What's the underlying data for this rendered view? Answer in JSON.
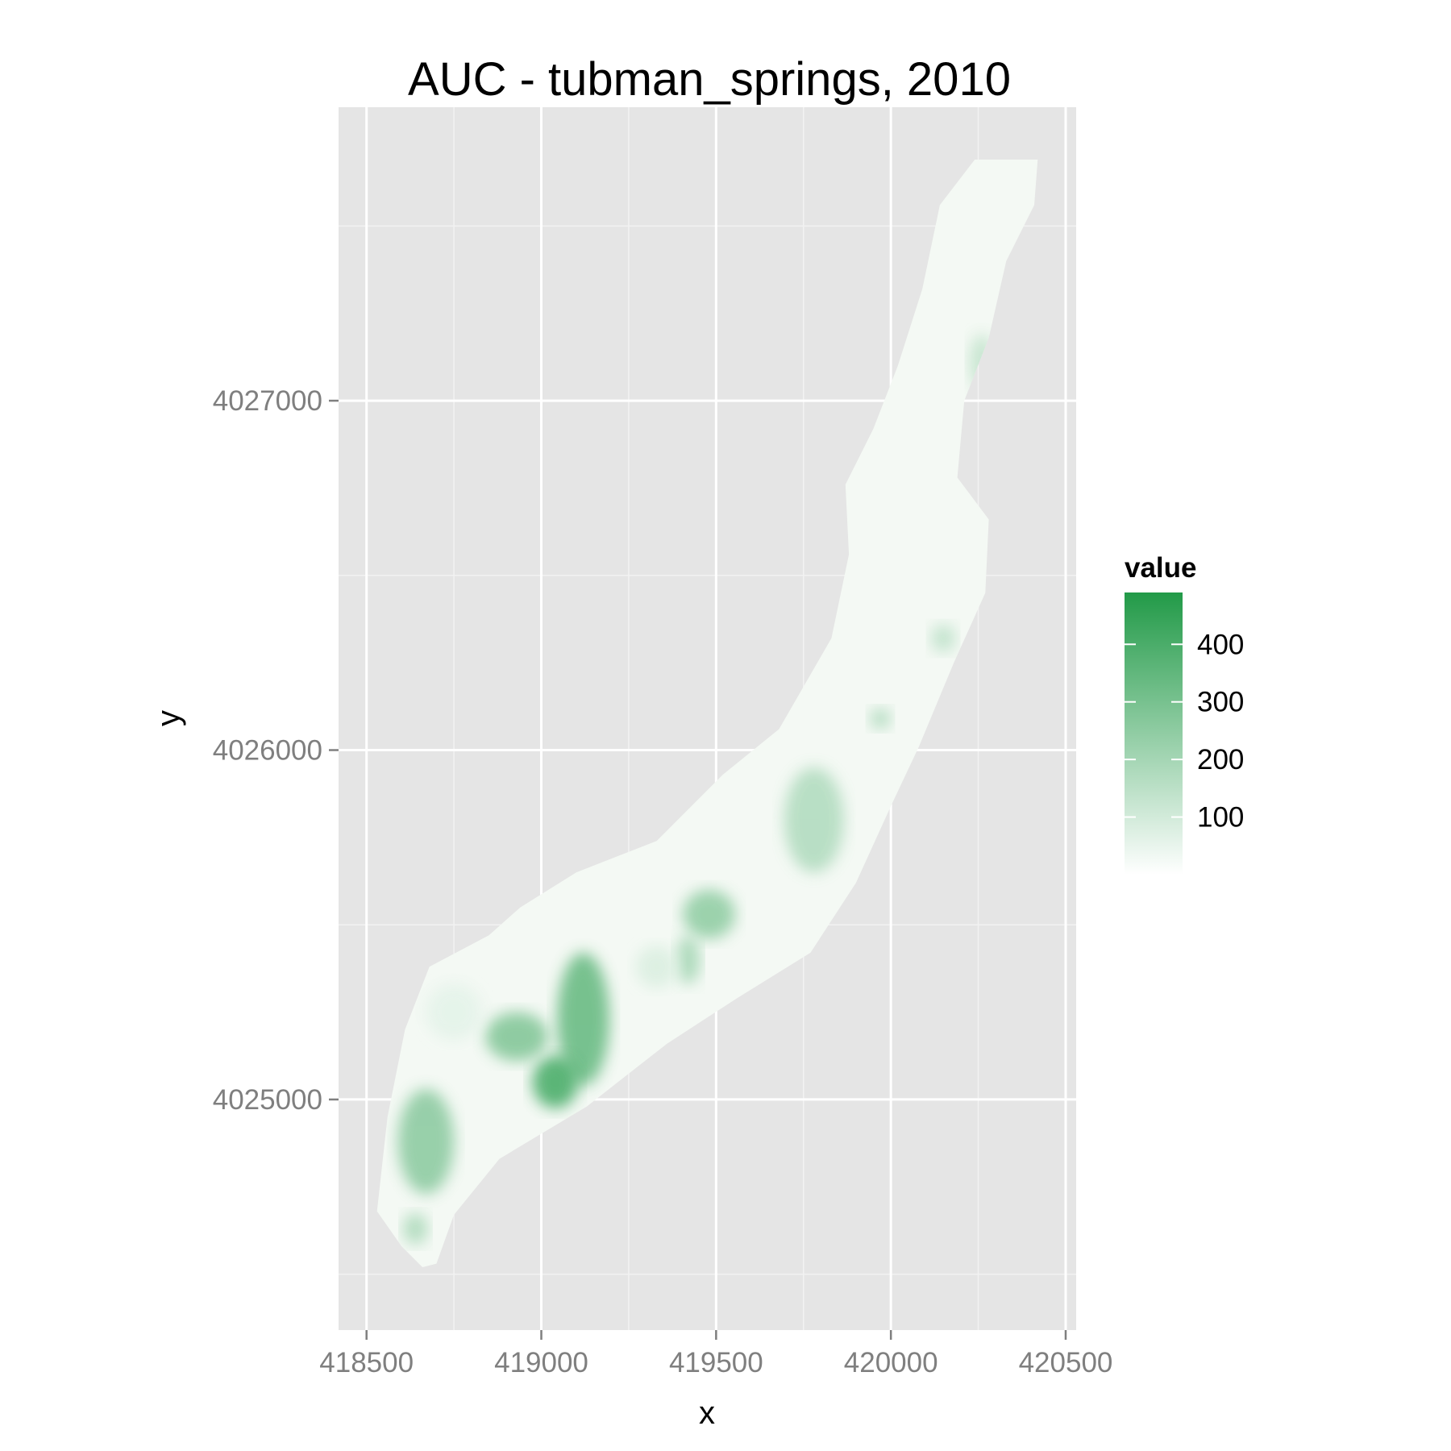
{
  "chart_data": {
    "type": "heatmap",
    "title": "AUC - tubman_springs, 2010",
    "xlabel": "x",
    "ylabel": "y",
    "xlim": [
      418420,
      420530
    ],
    "ylim": [
      4024340,
      4027840
    ],
    "x_ticks": [
      418500,
      419000,
      419500,
      420000,
      420500
    ],
    "x_tick_labels": [
      "418500",
      "419000",
      "419500",
      "420000",
      "420500"
    ],
    "y_ticks": [
      4025000,
      4026000,
      4027000
    ],
    "y_tick_labels": [
      "4025000",
      "4026000",
      "4027000"
    ],
    "grid": true,
    "panel_background": "#e5e5e5",
    "grid_color": "#ffffff",
    "legend": {
      "title": "value",
      "placement": "right",
      "range": [
        0,
        490
      ],
      "breaks": [
        100,
        200,
        300,
        400
      ],
      "break_labels": [
        "100",
        "200",
        "300",
        "400"
      ],
      "low_color": "#ffffff",
      "high_color": "#229a48"
    },
    "footprint": [
      [
        418530,
        4024680
      ],
      [
        418560,
        4024950
      ],
      [
        418610,
        4025200
      ],
      [
        418680,
        4025380
      ],
      [
        418850,
        4025470
      ],
      [
        418940,
        4025550
      ],
      [
        419100,
        4025650
      ],
      [
        419330,
        4025740
      ],
      [
        419520,
        4025930
      ],
      [
        419680,
        4026060
      ],
      [
        419830,
        4026320
      ],
      [
        419880,
        4026560
      ],
      [
        419870,
        4026760
      ],
      [
        419950,
        4026920
      ],
      [
        420020,
        4027100
      ],
      [
        420090,
        4027320
      ],
      [
        420140,
        4027560
      ],
      [
        420240,
        4027690
      ],
      [
        420420,
        4027690
      ],
      [
        420410,
        4027560
      ],
      [
        420330,
        4027400
      ],
      [
        420280,
        4027180
      ],
      [
        420210,
        4027000
      ],
      [
        420190,
        4026780
      ],
      [
        420280,
        4026660
      ],
      [
        420270,
        4026450
      ],
      [
        420180,
        4026250
      ],
      [
        420080,
        4026010
      ],
      [
        420000,
        4025840
      ],
      [
        419900,
        4025620
      ],
      [
        419770,
        4025420
      ],
      [
        419560,
        4025290
      ],
      [
        419360,
        4025160
      ],
      [
        419130,
        4024980
      ],
      [
        418880,
        4024830
      ],
      [
        418750,
        4024670
      ],
      [
        418700,
        4024530
      ],
      [
        418660,
        4024520
      ],
      [
        418600,
        4024580
      ]
    ],
    "hotspots": [
      {
        "x": 419120,
        "y": 4025230,
        "rx": 75,
        "ry": 190,
        "value": 330
      },
      {
        "x": 419040,
        "y": 4025050,
        "rx": 65,
        "ry": 75,
        "value": 400
      },
      {
        "x": 418930,
        "y": 4025180,
        "rx": 90,
        "ry": 70,
        "value": 270
      },
      {
        "x": 418670,
        "y": 4024880,
        "rx": 80,
        "ry": 150,
        "value": 250
      },
      {
        "x": 418640,
        "y": 4024630,
        "rx": 35,
        "ry": 45,
        "value": 180
      },
      {
        "x": 419480,
        "y": 4025530,
        "rx": 75,
        "ry": 70,
        "value": 240
      },
      {
        "x": 419420,
        "y": 4025400,
        "rx": 35,
        "ry": 70,
        "value": 190
      },
      {
        "x": 419780,
        "y": 4025800,
        "rx": 85,
        "ry": 150,
        "value": 170
      },
      {
        "x": 419970,
        "y": 4026090,
        "rx": 30,
        "ry": 30,
        "value": 170
      },
      {
        "x": 420150,
        "y": 4026320,
        "rx": 35,
        "ry": 40,
        "value": 140
      },
      {
        "x": 420260,
        "y": 4027110,
        "rx": 35,
        "ry": 80,
        "value": 130
      },
      {
        "x": 419330,
        "y": 4025380,
        "rx": 60,
        "ry": 60,
        "value": 80
      },
      {
        "x": 418750,
        "y": 4025250,
        "rx": 80,
        "ry": 80,
        "value": 60
      }
    ]
  }
}
